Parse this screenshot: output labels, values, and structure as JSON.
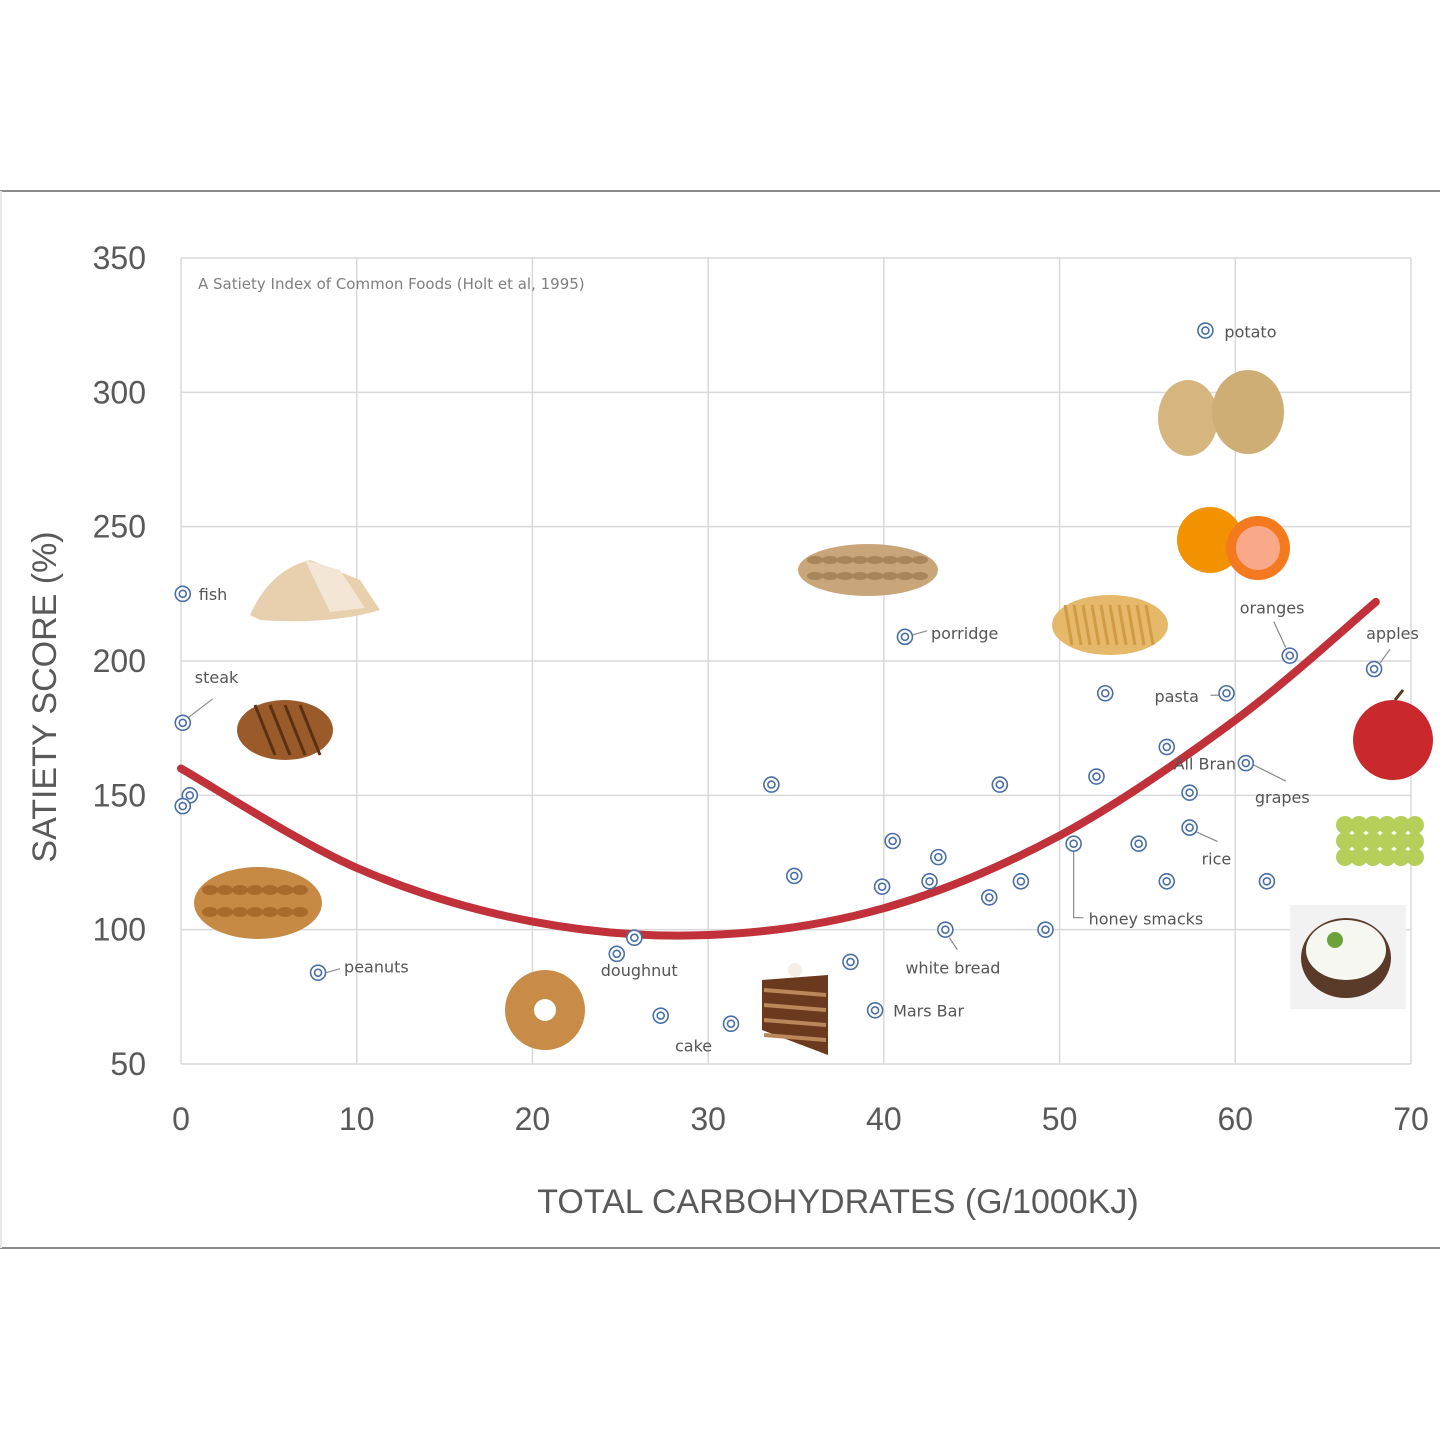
{
  "chart_data": {
    "type": "scatter",
    "title": "A Satiety Index of Common Foods (Holt et al, 1995)",
    "xlabel": "TOTAL CARBOHYDRATES (G/1000KJ)",
    "ylabel": "SATIETY SCORE (%)",
    "xlim": [
      0,
      70
    ],
    "ylim": [
      50,
      350
    ],
    "xticks": [
      "0",
      "10",
      "20",
      "30",
      "40",
      "50",
      "60",
      "70"
    ],
    "yticks": [
      "50",
      "100",
      "150",
      "200",
      "250",
      "300",
      "350"
    ],
    "xtick_values": [
      0,
      10,
      20,
      30,
      40,
      50,
      60,
      70
    ],
    "ytick_values": [
      50,
      100,
      150,
      200,
      250,
      300,
      350
    ],
    "grid": true,
    "marker_color": "#4a6fa5",
    "trend_color": "#c0313a",
    "trendline": {
      "type": "quadratic",
      "x_range": [
        0,
        68
      ],
      "points": [
        [
          0,
          160
        ],
        [
          10,
          123
        ],
        [
          20,
          103
        ],
        [
          30,
          98
        ],
        [
          40,
          108
        ],
        [
          50,
          135
        ],
        [
          60,
          178
        ],
        [
          68,
          222
        ]
      ]
    },
    "points": [
      {
        "x": 0.1,
        "y": 225,
        "label": "fish"
      },
      {
        "x": 0.1,
        "y": 177,
        "label": "steak"
      },
      {
        "x": 0.5,
        "y": 150,
        "label": ""
      },
      {
        "x": 0.1,
        "y": 146,
        "label": ""
      },
      {
        "x": 7.8,
        "y": 84,
        "label": "peanuts"
      },
      {
        "x": 24.8,
        "y": 91,
        "label": "doughnut"
      },
      {
        "x": 25.8,
        "y": 97,
        "label": ""
      },
      {
        "x": 27.3,
        "y": 68,
        "label": ""
      },
      {
        "x": 31.3,
        "y": 65,
        "label": "cake"
      },
      {
        "x": 33.6,
        "y": 154,
        "label": ""
      },
      {
        "x": 34.9,
        "y": 120,
        "label": ""
      },
      {
        "x": 38.1,
        "y": 88,
        "label": ""
      },
      {
        "x": 39.5,
        "y": 70,
        "label": "Mars Bar"
      },
      {
        "x": 39.9,
        "y": 116,
        "label": ""
      },
      {
        "x": 40.5,
        "y": 133,
        "label": ""
      },
      {
        "x": 41.2,
        "y": 209,
        "label": "porridge"
      },
      {
        "x": 42.6,
        "y": 118,
        "label": ""
      },
      {
        "x": 43.1,
        "y": 127,
        "label": ""
      },
      {
        "x": 43.5,
        "y": 100,
        "label": "white bread"
      },
      {
        "x": 46.0,
        "y": 112,
        "label": ""
      },
      {
        "x": 46.6,
        "y": 154,
        "label": ""
      },
      {
        "x": 47.8,
        "y": 118,
        "label": ""
      },
      {
        "x": 49.2,
        "y": 100,
        "label": ""
      },
      {
        "x": 50.8,
        "y": 132,
        "label": "honey smacks"
      },
      {
        "x": 52.1,
        "y": 157,
        "label": ""
      },
      {
        "x": 52.6,
        "y": 188,
        "label": ""
      },
      {
        "x": 54.5,
        "y": 132,
        "label": ""
      },
      {
        "x": 56.1,
        "y": 168,
        "label": ""
      },
      {
        "x": 56.1,
        "y": 118,
        "label": ""
      },
      {
        "x": 57.4,
        "y": 151,
        "label": "All Bran"
      },
      {
        "x": 57.4,
        "y": 138,
        "label": "rice"
      },
      {
        "x": 58.3,
        "y": 323,
        "label": "potato"
      },
      {
        "x": 59.5,
        "y": 188,
        "label": "pasta"
      },
      {
        "x": 60.6,
        "y": 162,
        "label": "grapes"
      },
      {
        "x": 61.8,
        "y": 118,
        "label": ""
      },
      {
        "x": 63.1,
        "y": 202,
        "label": "oranges"
      },
      {
        "x": 67.9,
        "y": 197,
        "label": "apples"
      }
    ],
    "food_images": [
      "fish",
      "steak",
      "peanuts",
      "doughnut",
      "cake",
      "porridge",
      "pasta",
      "potato",
      "oranges",
      "apples",
      "grapes",
      "rice"
    ]
  }
}
